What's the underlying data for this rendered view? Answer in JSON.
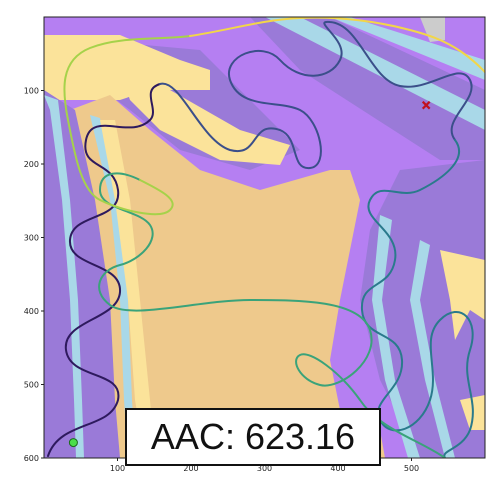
{
  "chart_data": {
    "type": "map-trajectory",
    "title": "",
    "xlabel": "",
    "ylabel": "",
    "xlim": [
      0,
      600
    ],
    "ylim": [
      600,
      0
    ],
    "x_ticks": [
      "100",
      "200",
      "300",
      "400",
      "500"
    ],
    "y_ticks": [
      "100",
      "200",
      "300",
      "400",
      "500",
      "600"
    ],
    "start_marker": {
      "x": 40,
      "y": 579,
      "color": "#4ade4a",
      "shape": "circle"
    },
    "end_marker": {
      "x": 520,
      "y": 120,
      "color": "#c1121f",
      "shape": "x"
    },
    "path_colormap": [
      "#2e1a5e",
      "#3b4f8a",
      "#2a7a8c",
      "#3aa37a",
      "#a6d24a",
      "#f2d648"
    ],
    "terrain_colors": {
      "purple": "#b57ff2",
      "dark_purple": "#9a7ad8",
      "sand": "#fbe39a",
      "tan": "#eec98c",
      "water": "#a9d8e8",
      "grey": "#cccccc"
    }
  },
  "annotation": {
    "label": "AAC: 623.16"
  }
}
